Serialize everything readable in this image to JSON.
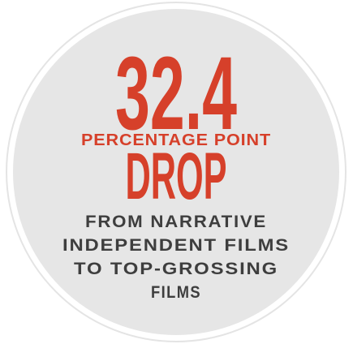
{
  "stat": {
    "value": 32.4,
    "unit": "PERCENTAGE POINT",
    "label": "DROP",
    "description": [
      "FROM NARRATIVE",
      "INDEPENDENT FILMS",
      "TO TOP-GROSSING",
      "FILMS"
    ]
  }
}
